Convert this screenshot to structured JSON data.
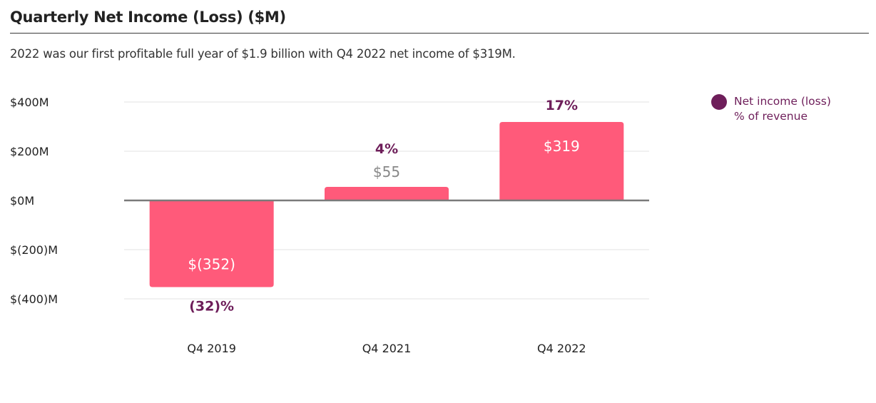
{
  "page": {
    "title": "Quarterly Net Income (Loss) ($M)",
    "subtitle": "2022 was our first profitable full year of $1.9 billion with Q4 2022 net income of $319M."
  },
  "legend": {
    "label_line1": "Net income (loss)",
    "label_line2": "% of revenue"
  },
  "colors": {
    "bar": "#ff5a7a",
    "accent": "#6e1e5a",
    "muted_value": "#888888",
    "tick_text": "#222222",
    "grid": "#e3e3e3",
    "baseline": "#7a7a7a"
  },
  "chart_data": {
    "type": "bar",
    "title": "Quarterly Net Income (Loss) ($M)",
    "categories": [
      "Q4 2019",
      "Q4 2021",
      "Q4 2022"
    ],
    "series": [
      {
        "name": "Net income (loss)",
        "values": [
          -352,
          55,
          319
        ]
      }
    ],
    "value_labels": [
      "$(352)",
      "$55",
      "$319"
    ],
    "margin_labels": [
      "(32)%",
      "4%",
      "17%"
    ],
    "margin_series_name": "% of revenue",
    "y_ticks": [
      400,
      200,
      0,
      -200,
      -400
    ],
    "y_tick_labels": [
      "$400M",
      "$200M",
      "$0M",
      "$(200)M",
      "$(400)M"
    ],
    "ylim": [
      -400,
      400
    ],
    "grid": true,
    "legend_position": "top-right"
  }
}
